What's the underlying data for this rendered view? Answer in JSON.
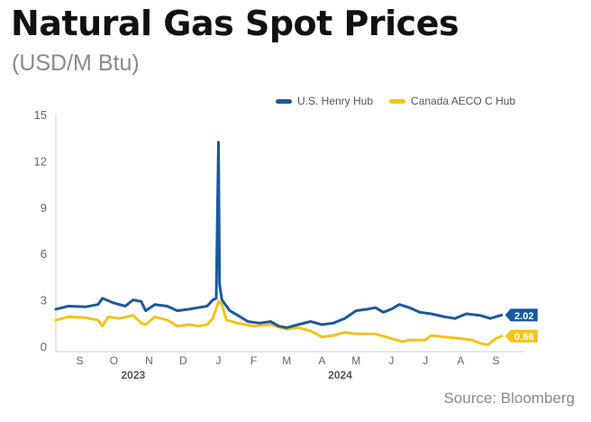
{
  "header": {
    "title": "Natural Gas Spot Prices",
    "subtitle": "(USD/M Btu)"
  },
  "source": "Source: Bloomberg",
  "colors": {
    "henry_hub": "#1b5a9c",
    "aeco": "#f5c318",
    "axis": "#cccccc",
    "text": "#666666"
  },
  "chart_data": {
    "type": "line",
    "title": "Natural Gas Spot Prices",
    "subtitle": "(USD/M Btu)",
    "ylim": [
      0,
      15
    ],
    "yticks": [
      0,
      3,
      6,
      9,
      12,
      15
    ],
    "xlim": [
      "2023-08-25",
      "2024-10-10"
    ],
    "x_month_ticks": [
      {
        "label": "S",
        "date": "2023-09-15"
      },
      {
        "label": "O",
        "date": "2023-10-15"
      },
      {
        "label": "N",
        "date": "2023-11-15"
      },
      {
        "label": "D",
        "date": "2023-12-15"
      },
      {
        "label": "J",
        "date": "2024-01-15"
      },
      {
        "label": "F",
        "date": "2024-02-15"
      },
      {
        "label": "M",
        "date": "2024-03-15"
      },
      {
        "label": "A",
        "date": "2024-04-15"
      },
      {
        "label": "M",
        "date": "2024-05-15"
      },
      {
        "label": "J",
        "date": "2024-06-15"
      },
      {
        "label": "J",
        "date": "2024-07-15"
      },
      {
        "label": "A",
        "date": "2024-08-15"
      },
      {
        "label": "S",
        "date": "2024-09-15"
      }
    ],
    "x_year_labels": [
      {
        "label": "2023",
        "date": "2023-11-01"
      },
      {
        "label": "2024",
        "date": "2024-05-01"
      }
    ],
    "legend_position": "top-right",
    "series": [
      {
        "name": "U.S. Henry Hub",
        "color": "#1b5a9c",
        "end_label": "2.02",
        "points": [
          [
            "2023-08-25",
            2.4
          ],
          [
            "2023-09-05",
            2.6
          ],
          [
            "2023-09-20",
            2.55
          ],
          [
            "2023-10-01",
            2.7
          ],
          [
            "2023-10-05",
            3.1
          ],
          [
            "2023-10-15",
            2.8
          ],
          [
            "2023-10-25",
            2.6
          ],
          [
            "2023-11-01",
            3.0
          ],
          [
            "2023-11-08",
            2.9
          ],
          [
            "2023-11-12",
            2.3
          ],
          [
            "2023-11-20",
            2.7
          ],
          [
            "2023-12-01",
            2.6
          ],
          [
            "2023-12-10",
            2.3
          ],
          [
            "2023-12-20",
            2.4
          ],
          [
            "2023-12-28",
            2.5
          ],
          [
            "2024-01-05",
            2.6
          ],
          [
            "2024-01-10",
            3.0
          ],
          [
            "2024-01-13",
            3.1
          ],
          [
            "2024-01-15",
            13.2
          ],
          [
            "2024-01-16",
            4.0
          ],
          [
            "2024-01-18",
            3.0
          ],
          [
            "2024-01-25",
            2.3
          ],
          [
            "2024-02-01",
            2.0
          ],
          [
            "2024-02-10",
            1.6
          ],
          [
            "2024-02-20",
            1.5
          ],
          [
            "2024-03-01",
            1.6
          ],
          [
            "2024-03-08",
            1.3
          ],
          [
            "2024-03-15",
            1.2
          ],
          [
            "2024-03-25",
            1.4
          ],
          [
            "2024-04-05",
            1.6
          ],
          [
            "2024-04-15",
            1.4
          ],
          [
            "2024-04-25",
            1.5
          ],
          [
            "2024-05-05",
            1.8
          ],
          [
            "2024-05-15",
            2.3
          ],
          [
            "2024-05-25",
            2.4
          ],
          [
            "2024-06-01",
            2.5
          ],
          [
            "2024-06-08",
            2.2
          ],
          [
            "2024-06-15",
            2.4
          ],
          [
            "2024-06-22",
            2.7
          ],
          [
            "2024-07-01",
            2.5
          ],
          [
            "2024-07-10",
            2.2
          ],
          [
            "2024-07-20",
            2.1
          ],
          [
            "2024-08-01",
            1.9
          ],
          [
            "2024-08-10",
            1.8
          ],
          [
            "2024-08-20",
            2.1
          ],
          [
            "2024-09-01",
            2.0
          ],
          [
            "2024-09-10",
            1.8
          ],
          [
            "2024-09-20",
            2.02
          ]
        ]
      },
      {
        "name": "Canada AECO C Hub",
        "color": "#f5c318",
        "end_label": "0.66",
        "points": [
          [
            "2023-08-25",
            1.7
          ],
          [
            "2023-09-05",
            1.9
          ],
          [
            "2023-09-20",
            1.85
          ],
          [
            "2023-10-01",
            1.7
          ],
          [
            "2023-10-05",
            1.3
          ],
          [
            "2023-10-10",
            1.9
          ],
          [
            "2023-10-20",
            1.8
          ],
          [
            "2023-11-01",
            2.0
          ],
          [
            "2023-11-08",
            1.5
          ],
          [
            "2023-11-12",
            1.4
          ],
          [
            "2023-11-20",
            1.9
          ],
          [
            "2023-12-01",
            1.7
          ],
          [
            "2023-12-10",
            1.3
          ],
          [
            "2023-12-20",
            1.4
          ],
          [
            "2023-12-28",
            1.3
          ],
          [
            "2024-01-05",
            1.4
          ],
          [
            "2024-01-10",
            1.8
          ],
          [
            "2024-01-15",
            2.9
          ],
          [
            "2024-01-18",
            2.7
          ],
          [
            "2024-01-22",
            1.7
          ],
          [
            "2024-02-01",
            1.5
          ],
          [
            "2024-02-15",
            1.3
          ],
          [
            "2024-03-01",
            1.4
          ],
          [
            "2024-03-15",
            1.1
          ],
          [
            "2024-03-25",
            1.2
          ],
          [
            "2024-04-05",
            1.0
          ],
          [
            "2024-04-15",
            0.6
          ],
          [
            "2024-04-25",
            0.7
          ],
          [
            "2024-05-05",
            0.9
          ],
          [
            "2024-05-15",
            0.8
          ],
          [
            "2024-06-01",
            0.8
          ],
          [
            "2024-06-15",
            0.5
          ],
          [
            "2024-06-25",
            0.3
          ],
          [
            "2024-07-01",
            0.4
          ],
          [
            "2024-07-15",
            0.4
          ],
          [
            "2024-07-20",
            0.7
          ],
          [
            "2024-08-01",
            0.6
          ],
          [
            "2024-08-15",
            0.5
          ],
          [
            "2024-08-25",
            0.4
          ],
          [
            "2024-09-01",
            0.2
          ],
          [
            "2024-09-08",
            0.1
          ],
          [
            "2024-09-15",
            0.5
          ],
          [
            "2024-09-20",
            0.66
          ]
        ]
      }
    ]
  }
}
